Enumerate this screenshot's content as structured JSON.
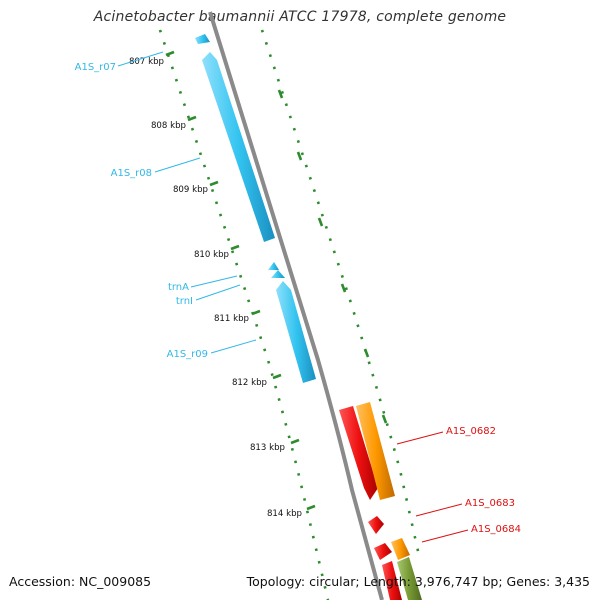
{
  "title": "Acinetobacter baumannii ATCC 17978, complete genome",
  "footer": {
    "accession": "Accession: NC_009085",
    "summary": "Topology: circular; Length: 3,976,747 bp; Genes: 3,435"
  },
  "colors": {
    "backbone": "#8a8a8a",
    "tick_dots": "#2e8b2e",
    "rna_feature": "#33c4f0",
    "rna_label": "#33b8e8",
    "gene_red": "#ee1111",
    "gene_orange": "#ff9900",
    "gene_olive": "#779933",
    "gene_label": "#dd1111"
  },
  "position_ticks": [
    "807 kbp",
    "808 kbp",
    "809 kbp",
    "810 kbp",
    "811 kbp",
    "812 kbp",
    "813 kbp",
    "814 kbp"
  ],
  "features": {
    "rna": [
      "A1S_r07",
      "A1S_r08",
      "trnA",
      "trnI",
      "A1S_r09"
    ],
    "genes": [
      "A1S_0682",
      "A1S_0683",
      "A1S_0684"
    ]
  }
}
